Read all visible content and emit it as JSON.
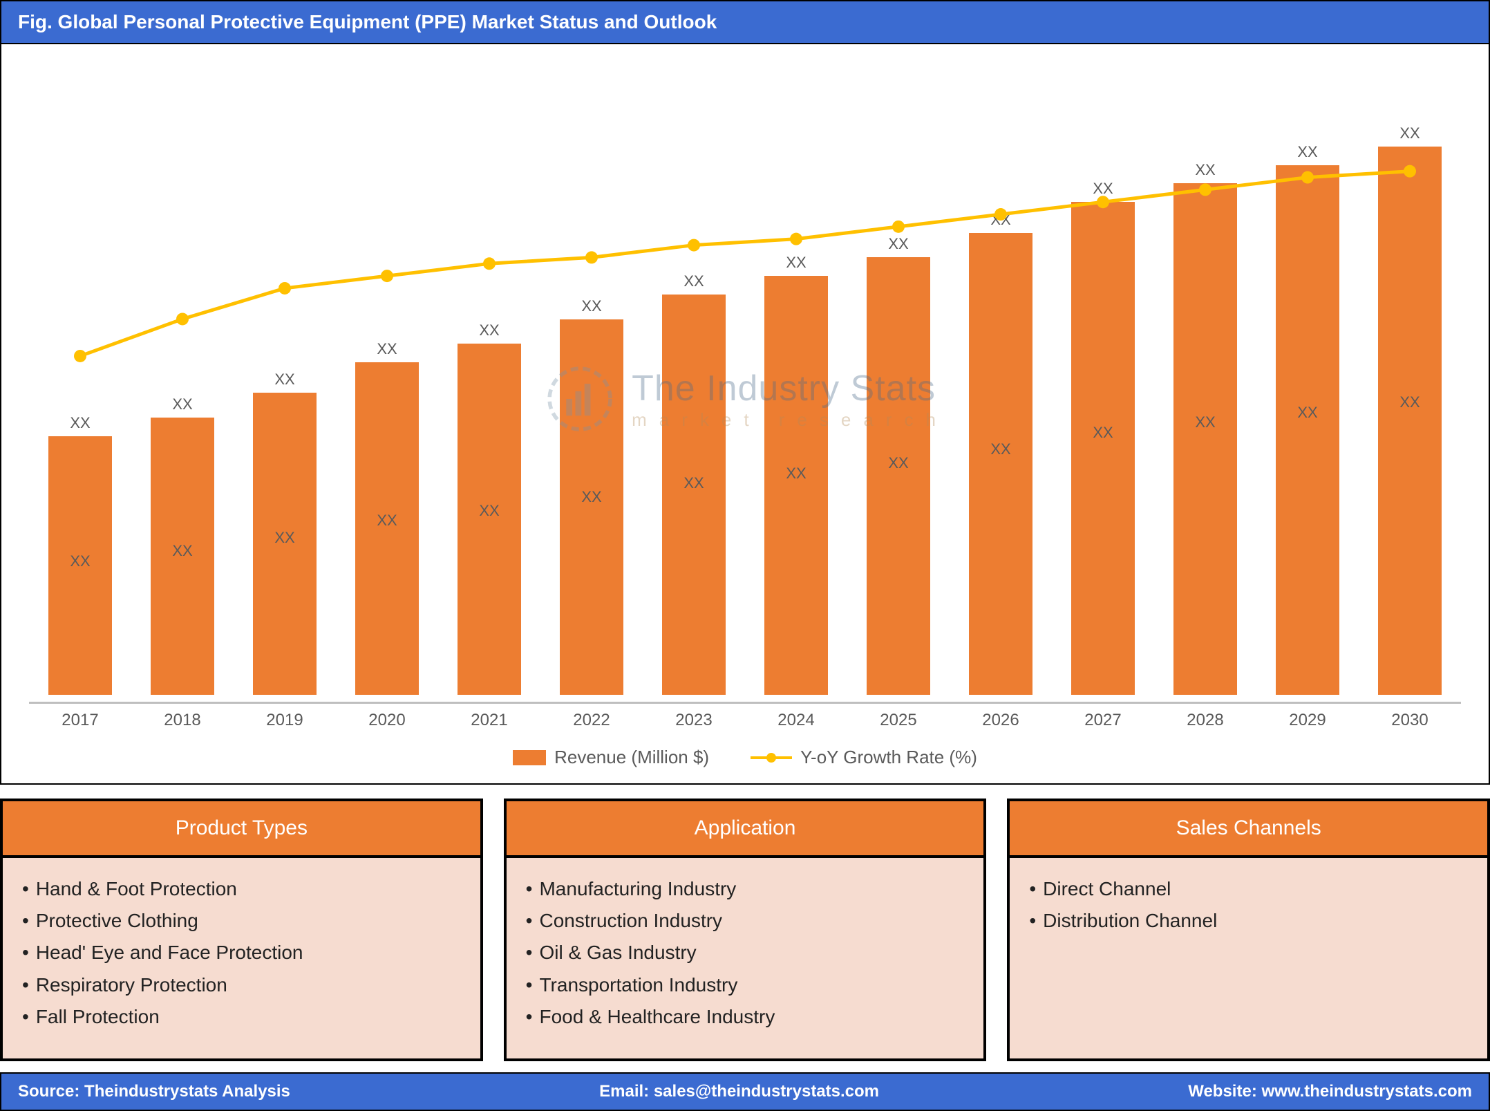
{
  "header": {
    "title": "Fig. Global Personal Protective Equipment (PPE) Market Status and Outlook"
  },
  "chart": {
    "type": "bar+line",
    "background_color": "#ffffff",
    "bar_color": "#ed7d31",
    "line_color": "#ffc000",
    "marker_color": "#ffc000",
    "axis_color": "#bfbfbf",
    "label_color": "#5a5a5a",
    "label_fontsize": 22,
    "xlabel_fontsize": 24,
    "bar_width_pct": 62,
    "line_width": 5,
    "marker_radius": 9,
    "ylim": [
      0,
      100
    ],
    "categories": [
      "2017",
      "2018",
      "2019",
      "2020",
      "2021",
      "2022",
      "2023",
      "2024",
      "2025",
      "2026",
      "2027",
      "2028",
      "2029",
      "2030"
    ],
    "bar_values": [
      42,
      45,
      49,
      54,
      57,
      61,
      65,
      68,
      71,
      75,
      80,
      83,
      86,
      89
    ],
    "bar_top_labels": [
      "XX",
      "XX",
      "XX",
      "XX",
      "XX",
      "XX",
      "XX",
      "XX",
      "XX",
      "XX",
      "XX",
      "XX",
      "XX",
      "XX"
    ],
    "bar_inner_labels": [
      "XX",
      "XX",
      "XX",
      "XX",
      "XX",
      "XX",
      "XX",
      "XX",
      "XX",
      "XX",
      "XX",
      "XX",
      "XX",
      "XX"
    ],
    "line_values": [
      55,
      61,
      66,
      68,
      70,
      71,
      73,
      74,
      76,
      78,
      80,
      82,
      84,
      85
    ],
    "legend": {
      "series1": "Revenue (Million $)",
      "series2": "Y-oY Growth Rate (%)"
    }
  },
  "watermark": {
    "line1": "The Industry Stats",
    "line2": "market research",
    "icon_color": "#7a93a8"
  },
  "panels": [
    {
      "title": "Product Types",
      "items": [
        "Hand & Foot Protection",
        "Protective Clothing",
        "Head' Eye and Face Protection",
        "Respiratory Protection",
        "Fall Protection"
      ]
    },
    {
      "title": "Application",
      "items": [
        "Manufacturing Industry",
        "Construction Industry",
        "Oil & Gas Industry",
        "Transportation Industry",
        "Food & Healthcare Industry"
      ]
    },
    {
      "title": "Sales Channels",
      "items": [
        "Direct Channel",
        "Distribution Channel"
      ]
    }
  ],
  "panel_style": {
    "header_bg": "#ed7d31",
    "header_color": "#ffffff",
    "body_bg": "#f6dcd0",
    "border_color": "#000000",
    "header_fontsize": 30,
    "body_fontsize": 28
  },
  "footer": {
    "source_label": "Source:",
    "source_value": "Theindustrystats Analysis",
    "email_label": "Email:",
    "email_value": "sales@theindustrystats.com",
    "website_label": "Website:",
    "website_value": "www.theindustrystats.com",
    "bg": "#3b6bd1",
    "color": "#ffffff"
  }
}
